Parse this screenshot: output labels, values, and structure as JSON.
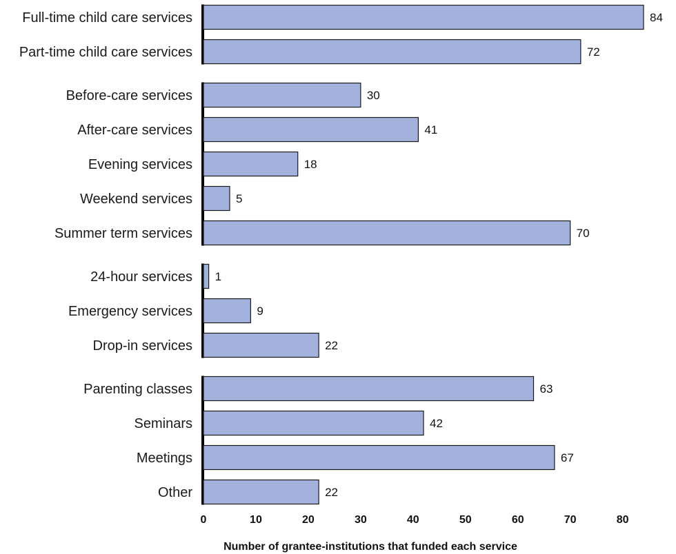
{
  "chart_data": {
    "type": "bar",
    "orientation": "horizontal",
    "title": "",
    "xlabel": "Number of grantee-institutions that funded each service",
    "ylabel": "",
    "xlim": [
      0,
      84
    ],
    "x_ticks": [
      0,
      10,
      20,
      30,
      40,
      50,
      60,
      70,
      80
    ],
    "grid": false,
    "legend": "none",
    "bar_color": "#a3b1dd",
    "bar_edge_color": "#1a1a1a",
    "groups": [
      {
        "items": [
          {
            "category": "Full-time child care services",
            "value": 84
          },
          {
            "category": "Part-time child care services",
            "value": 72
          }
        ]
      },
      {
        "items": [
          {
            "category": "Before-care services",
            "value": 30
          },
          {
            "category": "After-care services",
            "value": 41
          },
          {
            "category": "Evening services",
            "value": 18
          },
          {
            "category": "Weekend services",
            "value": 5
          },
          {
            "category": "Summer term services",
            "value": 70
          }
        ]
      },
      {
        "items": [
          {
            "category": "24-hour services",
            "value": 1
          },
          {
            "category": "Emergency services",
            "value": 9
          },
          {
            "category": "Drop-in services",
            "value": 22
          }
        ]
      },
      {
        "items": [
          {
            "category": "Parenting classes",
            "value": 63
          },
          {
            "category": "Seminars",
            "value": 42
          },
          {
            "category": "Meetings",
            "value": 67
          },
          {
            "category": "Other",
            "value": 22
          }
        ]
      }
    ]
  }
}
